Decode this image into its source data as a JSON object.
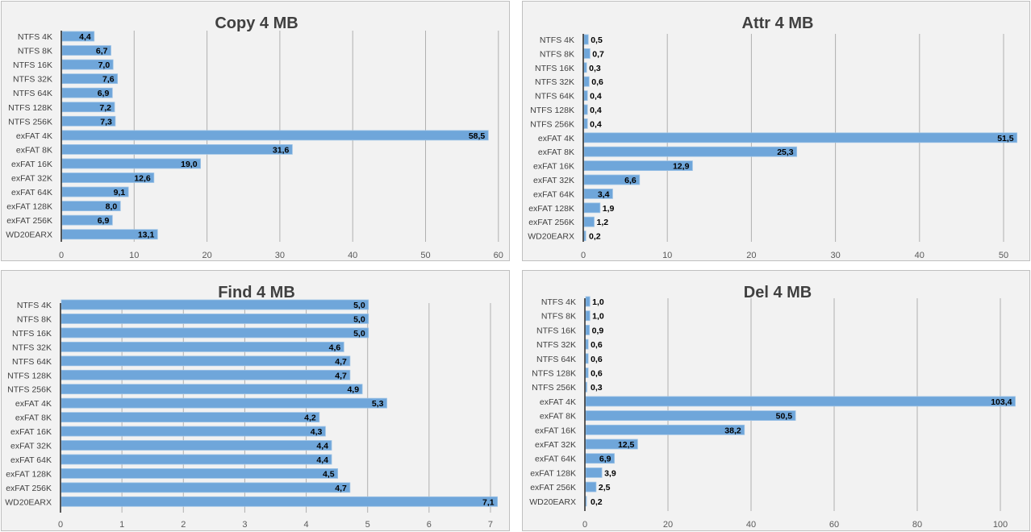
{
  "colors": {
    "bar": "#6fa6da",
    "bar_edge": "#9dc3e6",
    "grid": "#b0b0b0",
    "axis": "#262626",
    "panel_bg": "#f2f2f2"
  },
  "chart_data": [
    {
      "type": "bar",
      "orientation": "horizontal",
      "title": "Copy 4 MB",
      "categories": [
        "NTFS 4K",
        "NTFS 8K",
        "NTFS 16K",
        "NTFS 32K",
        "NTFS 64K",
        "NTFS 128K",
        "NTFS 256K",
        "exFAT 4K",
        "exFAT 8K",
        "exFAT 16K",
        "exFAT 32K",
        "exFAT 64K",
        "exFAT 128K",
        "exFAT 256K",
        "WD20EARX"
      ],
      "values": [
        4.4,
        6.7,
        7.0,
        7.6,
        6.9,
        7.2,
        7.3,
        58.5,
        31.6,
        19.0,
        12.6,
        9.1,
        8.0,
        6.9,
        13.1
      ],
      "labels": [
        "4,4",
        "6,7",
        "7,0",
        "7,6",
        "6,9",
        "7,2",
        "7,3",
        "58,5",
        "31,6",
        "19,0",
        "12,6",
        "9,1",
        "8,0",
        "6,9",
        "13,1"
      ],
      "xticks": [
        0,
        10,
        20,
        30,
        40,
        50,
        60
      ],
      "xtick_labels": [
        "0",
        "10",
        "20",
        "30",
        "40",
        "50",
        "60"
      ],
      "xlim": [
        0,
        60
      ],
      "label_position": "inside-end",
      "grid": true
    },
    {
      "type": "bar",
      "orientation": "horizontal",
      "title": "Attr 4 MB",
      "categories": [
        "NTFS 4K",
        "NTFS 8K",
        "NTFS 16K",
        "NTFS 32K",
        "NTFS 64K",
        "NTFS 128K",
        "NTFS 256K",
        "exFAT 4K",
        "exFAT 8K",
        "exFAT 16K",
        "exFAT 32K",
        "exFAT 64K",
        "exFAT 128K",
        "exFAT 256K",
        "WD20EARX"
      ],
      "values": [
        0.5,
        0.7,
        0.3,
        0.6,
        0.4,
        0.4,
        0.4,
        51.5,
        25.3,
        12.9,
        6.6,
        3.4,
        1.9,
        1.2,
        0.2
      ],
      "labels": [
        "0,5",
        "0,7",
        "0,3",
        "0,6",
        "0,4",
        "0,4",
        "0,4",
        "51,5",
        "25,3",
        "12,9",
        "6,6",
        "3,4",
        "1,9",
        "1,2",
        "0,2"
      ],
      "xticks": [
        0,
        10,
        20,
        30,
        40,
        50
      ],
      "xtick_labels": [
        "0",
        "10",
        "20",
        "30",
        "40",
        "50"
      ],
      "xlim": [
        0,
        52.5
      ],
      "label_position": "inside-end",
      "grid": true
    },
    {
      "type": "bar",
      "orientation": "horizontal",
      "title": "Find 4 MB",
      "categories": [
        "NTFS 4K",
        "NTFS 8K",
        "NTFS 16K",
        "NTFS 32K",
        "NTFS 64K",
        "NTFS 128K",
        "NTFS 256K",
        "exFAT 4K",
        "exFAT 8K",
        "exFAT 16K",
        "exFAT 32K",
        "exFAT 64K",
        "exFAT 128K",
        "exFAT 256K",
        "WD20EARX"
      ],
      "values": [
        5.0,
        5.0,
        5.0,
        4.6,
        4.7,
        4.7,
        4.9,
        5.3,
        4.2,
        4.3,
        4.4,
        4.4,
        4.5,
        4.7,
        7.1
      ],
      "labels": [
        "5,0",
        "5,0",
        "5,0",
        "4,6",
        "4,7",
        "4,7",
        "4,9",
        "5,3",
        "4,2",
        "4,3",
        "4,4",
        "4,4",
        "4,5",
        "4,7",
        "7,1"
      ],
      "xticks": [
        0,
        1,
        2,
        3,
        4,
        5,
        6,
        7
      ],
      "xtick_labels": [
        "0",
        "1",
        "2",
        "3",
        "4",
        "5",
        "6",
        "7"
      ],
      "xlim": [
        0,
        7
      ],
      "label_position": "inside-end",
      "grid": true
    },
    {
      "type": "bar",
      "orientation": "horizontal",
      "title": "Del 4 MB",
      "categories": [
        "NTFS 4K",
        "NTFS 8K",
        "NTFS 16K",
        "NTFS 32K",
        "NTFS 64K",
        "NTFS 128K",
        "NTFS 256K",
        "exFAT 4K",
        "exFAT 8K",
        "exFAT 16K",
        "exFAT 32K",
        "exFAT 64K",
        "exFAT 128K",
        "exFAT 256K",
        "WD20EARX"
      ],
      "values": [
        1.0,
        1.0,
        0.9,
        0.6,
        0.6,
        0.6,
        0.3,
        103.4,
        50.5,
        38.2,
        12.5,
        6.9,
        3.9,
        2.5,
        0.2
      ],
      "labels": [
        "1,0",
        "1,0",
        "0,9",
        "0,6",
        "0,6",
        "0,6",
        "0,3",
        "103,4",
        "50,5",
        "38,2",
        "12,5",
        "6,9",
        "3,9",
        "2,5",
        "0,2"
      ],
      "xticks": [
        0,
        20,
        40,
        60,
        80,
        100
      ],
      "xtick_labels": [
        "0",
        "20",
        "40",
        "60",
        "80",
        "100"
      ],
      "xlim": [
        0,
        104
      ],
      "label_position": "inside-end",
      "grid": true
    }
  ]
}
